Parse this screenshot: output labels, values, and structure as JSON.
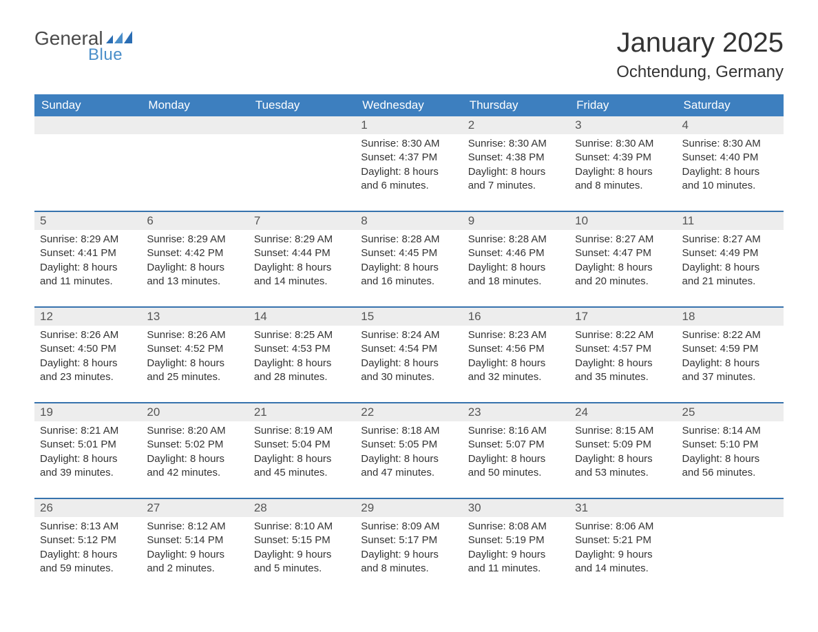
{
  "brand": {
    "word1": "General",
    "word2": "Blue"
  },
  "title": "January 2025",
  "location": "Ochtendung, Germany",
  "colors": {
    "header_bg": "#3d7fbf",
    "header_text": "#ffffff",
    "row_gray": "#ededed",
    "week_border": "#3672ad",
    "logo_blue": "#4a8ec9",
    "text": "#333333"
  },
  "columns": [
    "Sunday",
    "Monday",
    "Tuesday",
    "Wednesday",
    "Thursday",
    "Friday",
    "Saturday"
  ],
  "weeks": [
    [
      null,
      null,
      null,
      {
        "n": "1",
        "sunrise": "Sunrise: 8:30 AM",
        "sunset": "Sunset: 4:37 PM",
        "d1": "Daylight: 8 hours",
        "d2": "and 6 minutes."
      },
      {
        "n": "2",
        "sunrise": "Sunrise: 8:30 AM",
        "sunset": "Sunset: 4:38 PM",
        "d1": "Daylight: 8 hours",
        "d2": "and 7 minutes."
      },
      {
        "n": "3",
        "sunrise": "Sunrise: 8:30 AM",
        "sunset": "Sunset: 4:39 PM",
        "d1": "Daylight: 8 hours",
        "d2": "and 8 minutes."
      },
      {
        "n": "4",
        "sunrise": "Sunrise: 8:30 AM",
        "sunset": "Sunset: 4:40 PM",
        "d1": "Daylight: 8 hours",
        "d2": "and 10 minutes."
      }
    ],
    [
      {
        "n": "5",
        "sunrise": "Sunrise: 8:29 AM",
        "sunset": "Sunset: 4:41 PM",
        "d1": "Daylight: 8 hours",
        "d2": "and 11 minutes."
      },
      {
        "n": "6",
        "sunrise": "Sunrise: 8:29 AM",
        "sunset": "Sunset: 4:42 PM",
        "d1": "Daylight: 8 hours",
        "d2": "and 13 minutes."
      },
      {
        "n": "7",
        "sunrise": "Sunrise: 8:29 AM",
        "sunset": "Sunset: 4:44 PM",
        "d1": "Daylight: 8 hours",
        "d2": "and 14 minutes."
      },
      {
        "n": "8",
        "sunrise": "Sunrise: 8:28 AM",
        "sunset": "Sunset: 4:45 PM",
        "d1": "Daylight: 8 hours",
        "d2": "and 16 minutes."
      },
      {
        "n": "9",
        "sunrise": "Sunrise: 8:28 AM",
        "sunset": "Sunset: 4:46 PM",
        "d1": "Daylight: 8 hours",
        "d2": "and 18 minutes."
      },
      {
        "n": "10",
        "sunrise": "Sunrise: 8:27 AM",
        "sunset": "Sunset: 4:47 PM",
        "d1": "Daylight: 8 hours",
        "d2": "and 20 minutes."
      },
      {
        "n": "11",
        "sunrise": "Sunrise: 8:27 AM",
        "sunset": "Sunset: 4:49 PM",
        "d1": "Daylight: 8 hours",
        "d2": "and 21 minutes."
      }
    ],
    [
      {
        "n": "12",
        "sunrise": "Sunrise: 8:26 AM",
        "sunset": "Sunset: 4:50 PM",
        "d1": "Daylight: 8 hours",
        "d2": "and 23 minutes."
      },
      {
        "n": "13",
        "sunrise": "Sunrise: 8:26 AM",
        "sunset": "Sunset: 4:52 PM",
        "d1": "Daylight: 8 hours",
        "d2": "and 25 minutes."
      },
      {
        "n": "14",
        "sunrise": "Sunrise: 8:25 AM",
        "sunset": "Sunset: 4:53 PM",
        "d1": "Daylight: 8 hours",
        "d2": "and 28 minutes."
      },
      {
        "n": "15",
        "sunrise": "Sunrise: 8:24 AM",
        "sunset": "Sunset: 4:54 PM",
        "d1": "Daylight: 8 hours",
        "d2": "and 30 minutes."
      },
      {
        "n": "16",
        "sunrise": "Sunrise: 8:23 AM",
        "sunset": "Sunset: 4:56 PM",
        "d1": "Daylight: 8 hours",
        "d2": "and 32 minutes."
      },
      {
        "n": "17",
        "sunrise": "Sunrise: 8:22 AM",
        "sunset": "Sunset: 4:57 PM",
        "d1": "Daylight: 8 hours",
        "d2": "and 35 minutes."
      },
      {
        "n": "18",
        "sunrise": "Sunrise: 8:22 AM",
        "sunset": "Sunset: 4:59 PM",
        "d1": "Daylight: 8 hours",
        "d2": "and 37 minutes."
      }
    ],
    [
      {
        "n": "19",
        "sunrise": "Sunrise: 8:21 AM",
        "sunset": "Sunset: 5:01 PM",
        "d1": "Daylight: 8 hours",
        "d2": "and 39 minutes."
      },
      {
        "n": "20",
        "sunrise": "Sunrise: 8:20 AM",
        "sunset": "Sunset: 5:02 PM",
        "d1": "Daylight: 8 hours",
        "d2": "and 42 minutes."
      },
      {
        "n": "21",
        "sunrise": "Sunrise: 8:19 AM",
        "sunset": "Sunset: 5:04 PM",
        "d1": "Daylight: 8 hours",
        "d2": "and 45 minutes."
      },
      {
        "n": "22",
        "sunrise": "Sunrise: 8:18 AM",
        "sunset": "Sunset: 5:05 PM",
        "d1": "Daylight: 8 hours",
        "d2": "and 47 minutes."
      },
      {
        "n": "23",
        "sunrise": "Sunrise: 8:16 AM",
        "sunset": "Sunset: 5:07 PM",
        "d1": "Daylight: 8 hours",
        "d2": "and 50 minutes."
      },
      {
        "n": "24",
        "sunrise": "Sunrise: 8:15 AM",
        "sunset": "Sunset: 5:09 PM",
        "d1": "Daylight: 8 hours",
        "d2": "and 53 minutes."
      },
      {
        "n": "25",
        "sunrise": "Sunrise: 8:14 AM",
        "sunset": "Sunset: 5:10 PM",
        "d1": "Daylight: 8 hours",
        "d2": "and 56 minutes."
      }
    ],
    [
      {
        "n": "26",
        "sunrise": "Sunrise: 8:13 AM",
        "sunset": "Sunset: 5:12 PM",
        "d1": "Daylight: 8 hours",
        "d2": "and 59 minutes."
      },
      {
        "n": "27",
        "sunrise": "Sunrise: 8:12 AM",
        "sunset": "Sunset: 5:14 PM",
        "d1": "Daylight: 9 hours",
        "d2": "and 2 minutes."
      },
      {
        "n": "28",
        "sunrise": "Sunrise: 8:10 AM",
        "sunset": "Sunset: 5:15 PM",
        "d1": "Daylight: 9 hours",
        "d2": "and 5 minutes."
      },
      {
        "n": "29",
        "sunrise": "Sunrise: 8:09 AM",
        "sunset": "Sunset: 5:17 PM",
        "d1": "Daylight: 9 hours",
        "d2": "and 8 minutes."
      },
      {
        "n": "30",
        "sunrise": "Sunrise: 8:08 AM",
        "sunset": "Sunset: 5:19 PM",
        "d1": "Daylight: 9 hours",
        "d2": "and 11 minutes."
      },
      {
        "n": "31",
        "sunrise": "Sunrise: 8:06 AM",
        "sunset": "Sunset: 5:21 PM",
        "d1": "Daylight: 9 hours",
        "d2": "and 14 minutes."
      },
      null
    ]
  ]
}
